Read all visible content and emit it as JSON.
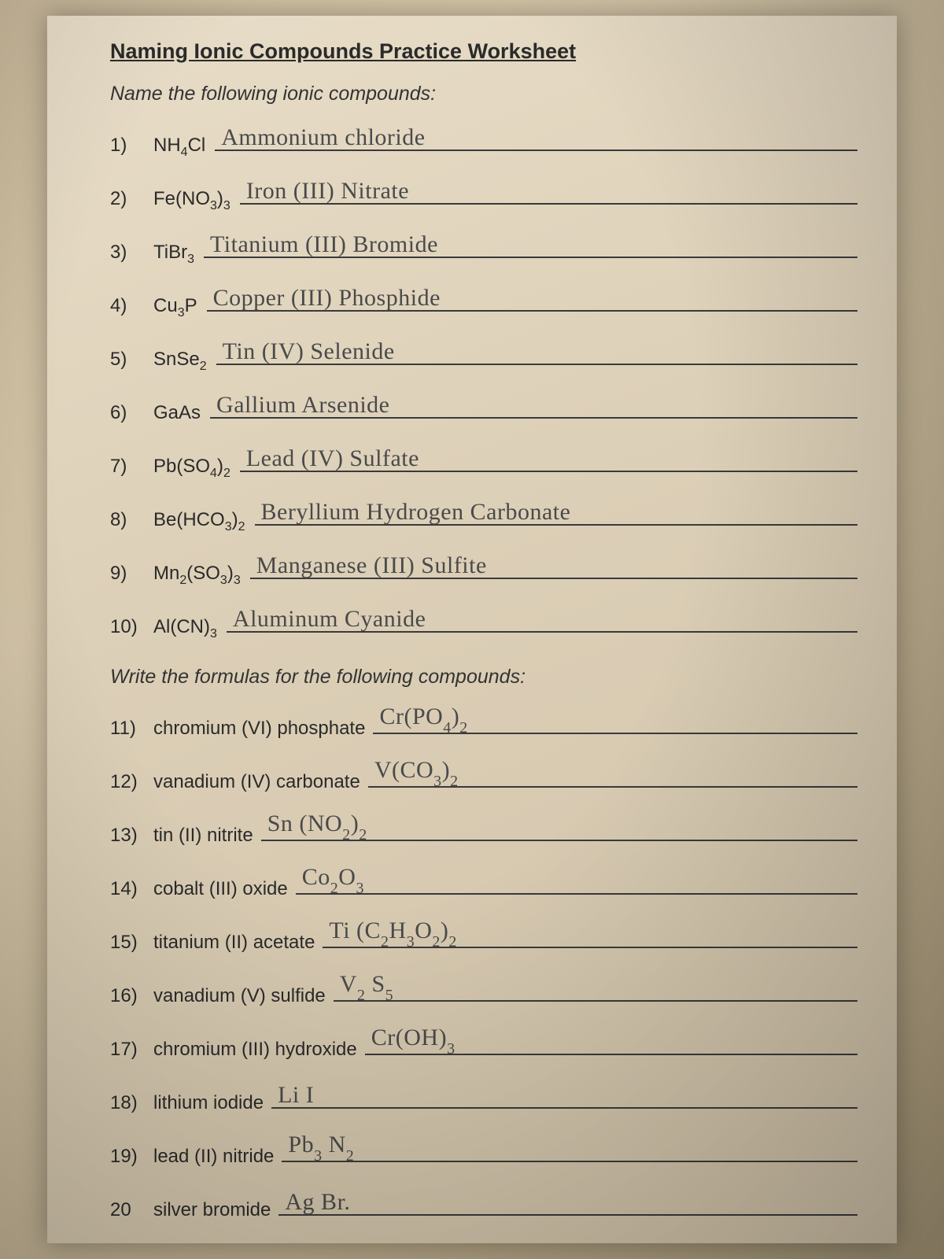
{
  "title": "Naming Ionic Compounds Practice Worksheet",
  "instruction1": "Name the following ionic compounds:",
  "instruction2": "Write the formulas for the following compounds:",
  "colors": {
    "paper_light": "#e8ddc8",
    "paper_dark": "#d0c2a8",
    "ink": "#2a2a2a",
    "pencil": "#4a4a4a",
    "underline": "#3a3a3a"
  },
  "part1": [
    {
      "n": "1)",
      "formula": "NH<sub>4</sub>Cl",
      "answer": "Ammonium chloride"
    },
    {
      "n": "2)",
      "formula": "Fe(NO<sub>3</sub>)<sub>3</sub>",
      "answer": "Iron (III) Nitrate"
    },
    {
      "n": "3)",
      "formula": "TiBr<sub>3</sub>",
      "answer": "Titanium (III) Bromide"
    },
    {
      "n": "4)",
      "formula": "Cu<sub>3</sub>P",
      "answer": "Copper (III) Phosphide"
    },
    {
      "n": "5)",
      "formula": "SnSe<sub>2</sub>",
      "answer": "Tin (IV) Selenide"
    },
    {
      "n": "6)",
      "formula": "GaAs",
      "answer": "Gallium Arsenide"
    },
    {
      "n": "7)",
      "formula": "Pb(SO<sub>4</sub>)<sub>2</sub>",
      "answer": "Lead (IV) Sulfate"
    },
    {
      "n": "8)",
      "formula": "Be(HCO<sub>3</sub>)<sub>2</sub>",
      "answer": "Beryllium Hydrogen Carbonate"
    },
    {
      "n": "9)",
      "formula": "Mn<sub>2</sub>(SO<sub>3</sub>)<sub>3</sub>",
      "answer": "Manganese (III) Sulfite"
    },
    {
      "n": "10)",
      "formula": "Al(CN)<sub>3</sub>",
      "answer": "Aluminum Cyanide"
    }
  ],
  "part2": [
    {
      "n": "11)",
      "prompt": "chromium (VI) phosphate",
      "answer": "Cr(PO<span class='hw-sub'>4</span>)<span class='hw-sub'>2</span>"
    },
    {
      "n": "12)",
      "prompt": "vanadium (IV) carbonate",
      "answer": "V(CO<span class='hw-sub'>3</span>)<span class='hw-sub'>2</span>"
    },
    {
      "n": "13)",
      "prompt": "tin (II) nitrite",
      "answer": "Sn (NO<span class='hw-sub'>2</span>)<span class='hw-sub'>2</span>"
    },
    {
      "n": "14)",
      "prompt": "cobalt (III) oxide",
      "answer": "Co<span class='hw-sub'>2</span>O<span class='hw-sub'>3</span>"
    },
    {
      "n": "15)",
      "prompt": "titanium (II) acetate",
      "answer": "Ti (C<span class='hw-sub'>2</span>H<span class='hw-sub'>3</span>O<span class='hw-sub'>2</span>)<span class='hw-sub'>2</span>"
    },
    {
      "n": "16)",
      "prompt": "vanadium (V) sulfide",
      "answer": "V<span class='hw-sub'>2</span> S<span class='hw-sub'>5</span>"
    },
    {
      "n": "17)",
      "prompt": "chromium (III) hydroxide",
      "answer": "Cr(OH)<span class='hw-sub'>3</span>"
    },
    {
      "n": "18)",
      "prompt": "lithium iodide",
      "answer": "Li I"
    },
    {
      "n": "19)",
      "prompt": "lead (II) nitride",
      "answer": "Pb<span class='hw-sub'>3</span> N<span class='hw-sub'>2</span>"
    },
    {
      "n": "20",
      "prompt": "silver bromide",
      "answer": "Ag Br."
    }
  ],
  "typography": {
    "title_fontsize": 27,
    "body_fontsize": 24,
    "handwriting_fontsize": 30,
    "handwriting_font": "Comic Sans MS"
  }
}
